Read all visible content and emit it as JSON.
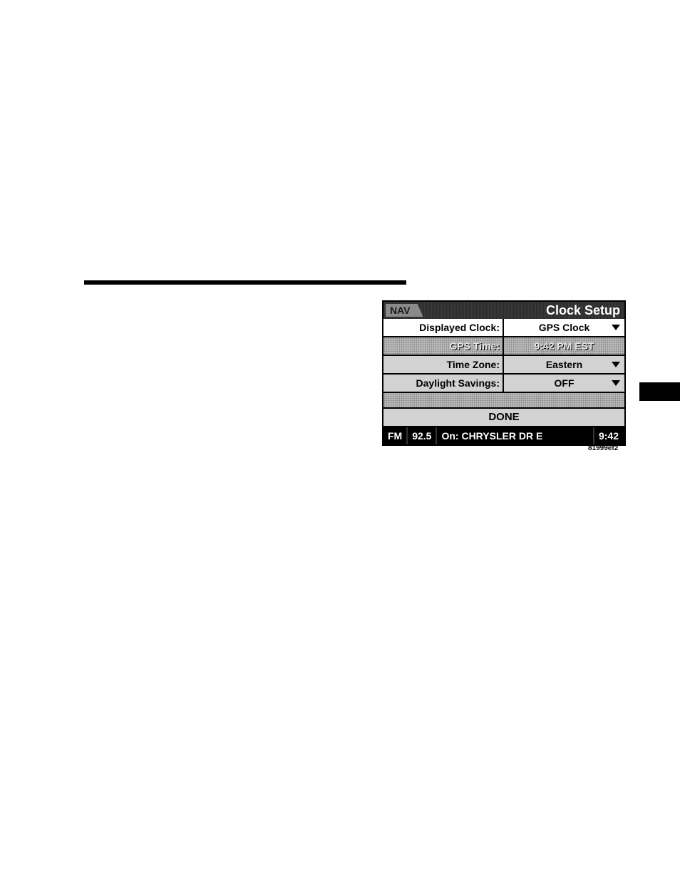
{
  "page": {
    "image_id_caption": "81999ef2"
  },
  "nav_screen": {
    "header": {
      "nav_label": "NAV",
      "title": "Clock Setup"
    },
    "rows": [
      {
        "label": "Displayed Clock:",
        "value": "GPS Clock",
        "has_dropdown": true,
        "style": "white"
      },
      {
        "label": "GPS Time:",
        "value": "9:42 PM EST",
        "has_dropdown": false,
        "style": "dark"
      },
      {
        "label": "Time Zone:",
        "value": "Eastern",
        "has_dropdown": true,
        "style": "tex"
      },
      {
        "label": "Daylight Savings:",
        "value": "OFF",
        "has_dropdown": true,
        "style": "tex"
      }
    ],
    "done_label": "DONE",
    "status": {
      "band": "FM",
      "freq": "92.5",
      "on_label": "On: CHRYSLER DR E",
      "clock": "9:42"
    },
    "colors": {
      "black": "#000000",
      "white": "#ffffff",
      "grey_light": "#d2d2d2",
      "grey_mid": "#8a8a8a"
    }
  }
}
